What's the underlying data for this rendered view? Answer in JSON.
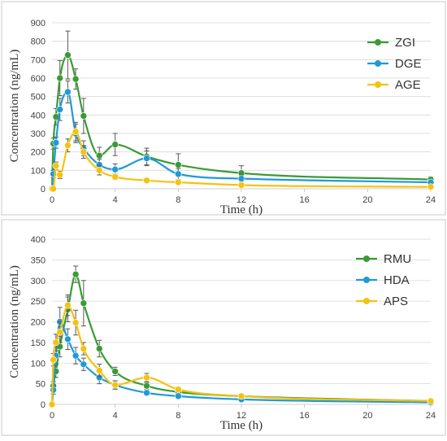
{
  "chart_data": [
    {
      "type": "line",
      "xlabel": "Time (h)",
      "ylabel": "Concentration (ng/mL)",
      "xlim": [
        0,
        24
      ],
      "ylim": [
        0,
        900
      ],
      "xticks": [
        0,
        4,
        8,
        12,
        16,
        20,
        24
      ],
      "yticks": [
        0,
        100,
        200,
        300,
        400,
        500,
        600,
        700,
        800,
        900
      ],
      "grid": "horizontal",
      "legend_position": "top-right",
      "series": [
        {
          "name": "ZGI",
          "color": "#3a9b35",
          "x": [
            0,
            0.083,
            0.25,
            0.5,
            1,
            1.5,
            2,
            3,
            4,
            6,
            8,
            12,
            24
          ],
          "y": [
            0,
            245,
            390,
            600,
            725,
            595,
            395,
            180,
            240,
            175,
            130,
            85,
            50
          ],
          "err": [
            0,
            30,
            45,
            95,
            130,
            55,
            95,
            45,
            60,
            45,
            60,
            40,
            15
          ]
        },
        {
          "name": "DGE",
          "color": "#1f9ad6",
          "x": [
            0,
            0.083,
            0.25,
            0.5,
            1,
            1.5,
            2,
            3,
            4,
            6,
            8,
            12,
            24
          ],
          "y": [
            0,
            80,
            250,
            430,
            525,
            300,
            220,
            130,
            105,
            165,
            80,
            55,
            35
          ],
          "err": [
            0,
            20,
            30,
            60,
            60,
            50,
            40,
            30,
            30,
            40,
            30,
            20,
            10
          ]
        },
        {
          "name": "AGE",
          "color": "#f5c211",
          "x": [
            0,
            0.083,
            0.25,
            0.5,
            1,
            1.5,
            2,
            3,
            4,
            6,
            8,
            12,
            24
          ],
          "y": [
            0,
            0,
            125,
            75,
            235,
            310,
            200,
            100,
            65,
            45,
            35,
            20,
            10
          ],
          "err": [
            0,
            0,
            20,
            20,
            35,
            50,
            35,
            25,
            15,
            10,
            8,
            5,
            3
          ]
        }
      ]
    },
    {
      "type": "line",
      "xlabel": "Time (h)",
      "ylabel": "Concentration (ng/mL)",
      "xlim": [
        0,
        24
      ],
      "ylim": [
        0,
        400
      ],
      "xticks": [
        0,
        4,
        8,
        12,
        16,
        20,
        24
      ],
      "yticks": [
        0,
        50,
        100,
        150,
        200,
        250,
        300,
        350,
        400
      ],
      "grid": "horizontal",
      "legend_position": "top-right",
      "series": [
        {
          "name": "RMU",
          "color": "#3a9b35",
          "x": [
            0,
            0.083,
            0.25,
            0.5,
            1,
            1.5,
            2,
            3,
            4,
            6,
            8,
            12,
            24
          ],
          "y": [
            0,
            45,
            80,
            140,
            230,
            315,
            245,
            135,
            80,
            45,
            30,
            20,
            8
          ],
          "err": [
            0,
            10,
            15,
            25,
            30,
            20,
            55,
            20,
            10,
            8,
            6,
            4,
            2
          ]
        },
        {
          "name": "HDA",
          "color": "#1f9ad6",
          "x": [
            0,
            0.083,
            0.25,
            0.5,
            1,
            1.5,
            2,
            3,
            4,
            6,
            8,
            12,
            24
          ],
          "y": [
            0,
            35,
            118,
            200,
            158,
            118,
            97,
            65,
            47,
            28,
            20,
            12,
            5
          ],
          "err": [
            0,
            10,
            20,
            35,
            25,
            20,
            15,
            15,
            10,
            6,
            5,
            3,
            2
          ]
        },
        {
          "name": "APS",
          "color": "#f5c211",
          "x": [
            0,
            0.083,
            0.25,
            0.5,
            1,
            1.5,
            2,
            3,
            4,
            6,
            8,
            12,
            24
          ],
          "y": [
            0,
            108,
            150,
            175,
            240,
            198,
            135,
            82,
            47,
            65,
            36,
            20,
            8
          ],
          "err": [
            0,
            15,
            20,
            25,
            25,
            30,
            15,
            15,
            10,
            10,
            6,
            4,
            2
          ]
        }
      ]
    }
  ]
}
